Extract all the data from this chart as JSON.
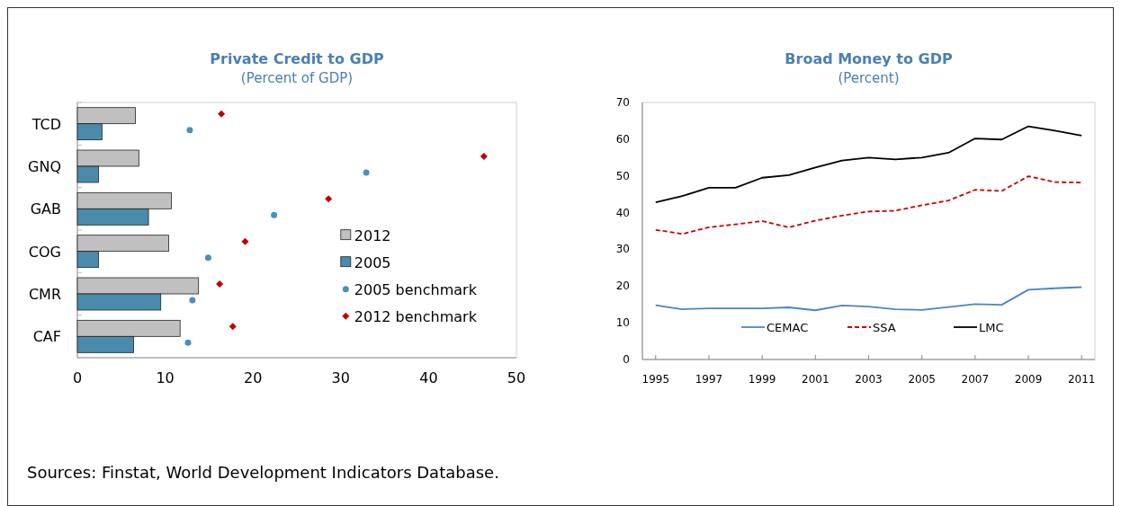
{
  "chart_data": [
    {
      "type": "bar",
      "title": "Private Credit to GDP",
      "subtitle": "(Percent of GDP)",
      "orientation": "horizontal",
      "categories": [
        "TCD",
        "GNQ",
        "GAB",
        "COG",
        "CMR",
        "CAF"
      ],
      "series": [
        {
          "name": "2012",
          "color": "#c0c0c0",
          "values": [
            6.6,
            7.0,
            10.7,
            10.4,
            13.8,
            11.7
          ]
        },
        {
          "name": "2005",
          "color": "#4a8aab",
          "values": [
            2.8,
            2.4,
            8.1,
            2.4,
            9.5,
            6.4
          ]
        },
        {
          "name": "2005 benchmark",
          "type": "scatter",
          "marker": "circle",
          "color": "#4a90b8",
          "values": [
            12.8,
            32.9,
            22.4,
            14.9,
            13.1,
            12.6
          ]
        },
        {
          "name": "2012 benchmark",
          "type": "scatter",
          "marker": "diamond",
          "color": "#c00000",
          "values": [
            16.4,
            46.3,
            28.6,
            19.1,
            16.2,
            17.7
          ]
        }
      ],
      "xlim": [
        0,
        50
      ],
      "xticks": [
        0,
        10,
        20,
        30,
        40,
        50
      ],
      "legend": "right",
      "annotations": [
        "Sources: Finstat, World Development Indicators Database."
      ]
    },
    {
      "type": "line",
      "title": "Broad Money to GDP",
      "subtitle": "(Percent)",
      "x": [
        1995,
        1996,
        1997,
        1998,
        1999,
        2000,
        2001,
        2002,
        2003,
        2004,
        2005,
        2006,
        2007,
        2008,
        2009,
        2010,
        2011
      ],
      "series": [
        {
          "name": "CEMAC",
          "color": "#4a86c0",
          "line_style": "solid",
          "values": [
            14.8,
            13.7,
            13.9,
            13.9,
            13.9,
            14.2,
            13.4,
            14.7,
            14.4,
            13.7,
            13.5,
            14.3,
            15.1,
            14.9,
            19.0,
            19.4,
            19.7
          ]
        },
        {
          "name": "SSA",
          "color": "#cc0000",
          "line_style": "dashed",
          "values": [
            35.3,
            34.2,
            36.0,
            36.8,
            37.7,
            36.0,
            37.8,
            39.2,
            40.3,
            40.5,
            42.0,
            43.3,
            46.2,
            45.9,
            49.9,
            48.3,
            48.2
          ]
        },
        {
          "name": "LMC",
          "color": "#000000",
          "line_style": "solid",
          "values": [
            42.8,
            44.5,
            46.8,
            46.8,
            49.5,
            50.2,
            52.3,
            54.2,
            55.0,
            54.5,
            55.0,
            56.3,
            60.2,
            59.9,
            63.5,
            62.3,
            61.0
          ]
        }
      ],
      "xlim": [
        1994.5,
        2011.5
      ],
      "xticks": [
        1995,
        1997,
        1999,
        2001,
        2003,
        2005,
        2007,
        2009,
        2011
      ],
      "ylim": [
        0,
        70
      ],
      "yticks": [
        0,
        10,
        20,
        30,
        40,
        50,
        60,
        70
      ],
      "legend": "bottom"
    }
  ]
}
